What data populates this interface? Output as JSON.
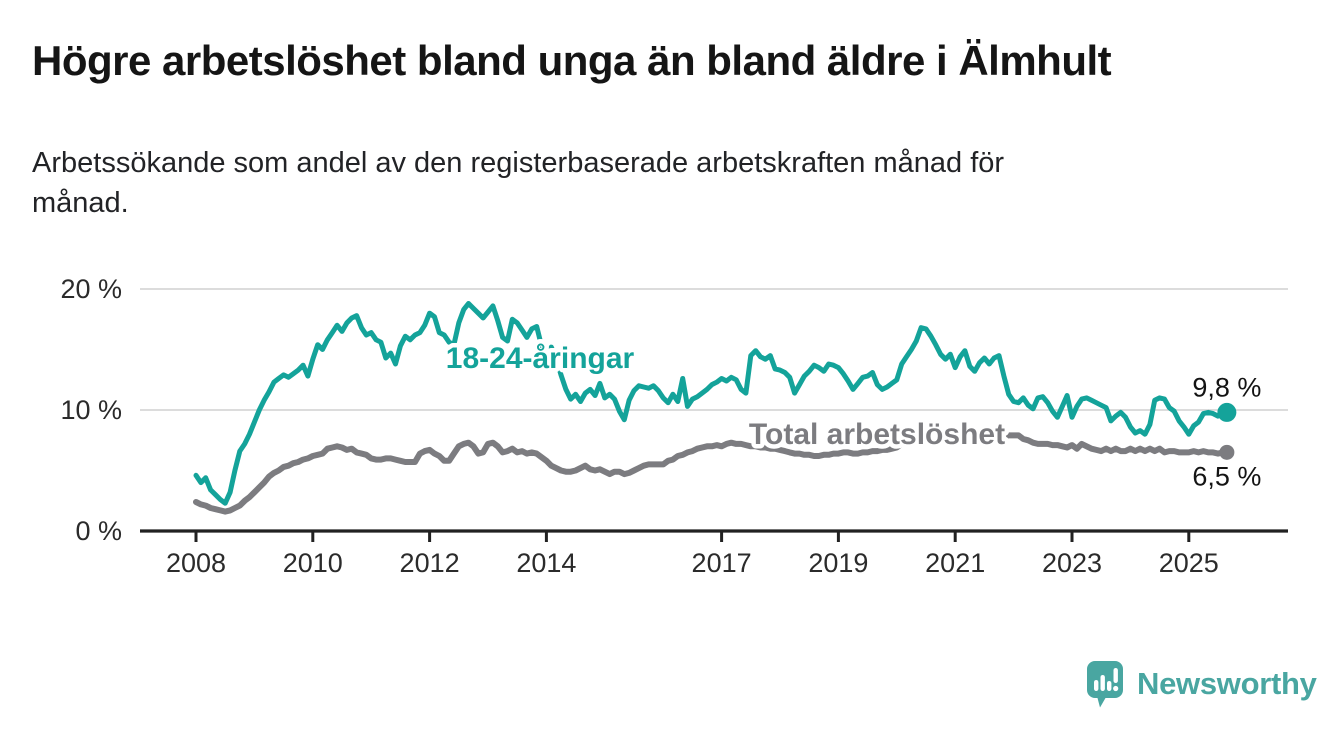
{
  "header": {
    "title": "Högre arbetslöshet bland unga än bland äldre i Älmhult",
    "subtitle": "Arbetssökande som andel av den registerbaserade arbetskraften månad för\nmånad."
  },
  "chart_data": {
    "type": "line",
    "title": "Högre arbetslöshet bland unga än bland äldre i Älmhult",
    "subtitle": "Arbetssökande som andel av den registerbaserade arbetskraften månad för månad.",
    "unit": "%",
    "frequency": "monthly",
    "x_start": "2008-01",
    "x_end": "2025-08",
    "ylim": [
      0,
      20
    ],
    "grid": "horizontal",
    "legend": "inline-labels",
    "y_ticks": [
      {
        "value": 0,
        "label": "0 %"
      },
      {
        "value": 10,
        "label": "10 %"
      },
      {
        "value": 20,
        "label": "20 %"
      }
    ],
    "x_ticks": [
      {
        "year": 2008,
        "label": "2008"
      },
      {
        "year": 2010,
        "label": "2010"
      },
      {
        "year": 2012,
        "label": "2012"
      },
      {
        "year": 2014,
        "label": "2014"
      },
      {
        "year": 2017,
        "label": "2017"
      },
      {
        "year": 2019,
        "label": "2019"
      },
      {
        "year": 2021,
        "label": "2021"
      },
      {
        "year": 2023,
        "label": "2023"
      },
      {
        "year": 2025,
        "label": "2025"
      }
    ],
    "series": [
      {
        "name": "18-24-åringar",
        "color": "#14A39A",
        "end_label": "9,8 %",
        "end_value": 9.8,
        "values": [
          4.6,
          4.0,
          4.4,
          3.4,
          3.0,
          2.6,
          2.3,
          3.2,
          5.0,
          6.6,
          7.2,
          8.0,
          9.0,
          10.0,
          10.8,
          11.5,
          12.3,
          12.6,
          12.9,
          12.7,
          13.0,
          13.3,
          13.7,
          12.8,
          14.2,
          15.4,
          15.0,
          15.8,
          16.4,
          17.0,
          16.5,
          17.2,
          17.6,
          17.8,
          16.8,
          16.2,
          16.4,
          15.8,
          15.6,
          14.3,
          14.7,
          13.8,
          15.3,
          16.1,
          15.8,
          16.2,
          16.4,
          17.0,
          18.0,
          17.7,
          16.4,
          16.2,
          15.6,
          15.4,
          17.2,
          18.3,
          18.8,
          18.4,
          18.0,
          17.6,
          18.1,
          18.6,
          17.4,
          16.0,
          15.7,
          17.5,
          17.2,
          16.6,
          16.0,
          16.7,
          16.9,
          15.3,
          14.5,
          15.2,
          14.3,
          12.9,
          11.7,
          10.9,
          11.3,
          10.7,
          11.4,
          11.7,
          11.2,
          12.2,
          11.0,
          11.3,
          10.9,
          9.9,
          9.2,
          10.8,
          11.6,
          12.0,
          11.9,
          11.8,
          12.0,
          11.6,
          11.0,
          10.6,
          11.3,
          10.7,
          12.6,
          10.3,
          10.9,
          11.1,
          11.4,
          11.7,
          12.1,
          12.3,
          12.6,
          12.4,
          12.7,
          12.5,
          11.7,
          11.4,
          14.5,
          14.9,
          14.4,
          14.2,
          14.5,
          13.4,
          13.3,
          13.1,
          12.7,
          11.4,
          12.1,
          12.8,
          13.2,
          13.7,
          13.5,
          13.2,
          13.8,
          13.7,
          13.5,
          13.0,
          12.4,
          11.7,
          12.2,
          12.7,
          12.8,
          13.1,
          12.1,
          11.7,
          11.9,
          12.2,
          12.5,
          13.8,
          14.4,
          15.0,
          15.7,
          16.8,
          16.7,
          16.1,
          15.4,
          14.6,
          14.2,
          14.6,
          13.5,
          14.4,
          14.9,
          13.6,
          13.2,
          13.9,
          14.3,
          13.8,
          14.3,
          14.5,
          12.8,
          11.3,
          10.7,
          10.6,
          11.0,
          10.4,
          10.1,
          11.0,
          11.1,
          10.6,
          9.9,
          9.4,
          10.3,
          11.2,
          9.4,
          10.3,
          10.9,
          11.0,
          10.8,
          10.6,
          10.4,
          10.2,
          9.1,
          9.5,
          9.8,
          9.4,
          8.6,
          8.1,
          8.3,
          8.0,
          8.8,
          10.8,
          11.0,
          10.9,
          10.2,
          9.9,
          9.1,
          8.6,
          8.0,
          8.7,
          9.0,
          9.7,
          9.8,
          9.7,
          9.5,
          9.8
        ]
      },
      {
        "name": "Total arbetslöshet",
        "color": "#7C7C80",
        "end_label": "6,5 %",
        "end_value": 6.5,
        "values": [
          2.4,
          2.2,
          2.1,
          1.9,
          1.8,
          1.7,
          1.6,
          1.7,
          1.9,
          2.1,
          2.5,
          2.8,
          3.2,
          3.6,
          4.0,
          4.5,
          4.8,
          5.0,
          5.3,
          5.4,
          5.6,
          5.7,
          5.9,
          6.0,
          6.2,
          6.3,
          6.4,
          6.8,
          6.9,
          7.0,
          6.9,
          6.7,
          6.8,
          6.5,
          6.4,
          6.3,
          6.0,
          5.9,
          5.9,
          6.0,
          6.0,
          5.9,
          5.8,
          5.7,
          5.7,
          5.7,
          6.4,
          6.6,
          6.7,
          6.4,
          6.2,
          5.8,
          5.8,
          6.4,
          7.0,
          7.2,
          7.3,
          7.0,
          6.4,
          6.5,
          7.2,
          7.3,
          7.0,
          6.5,
          6.6,
          6.8,
          6.5,
          6.6,
          6.4,
          6.5,
          6.4,
          6.1,
          5.8,
          5.4,
          5.2,
          5.0,
          4.9,
          4.9,
          5.0,
          5.2,
          5.4,
          5.1,
          5.0,
          5.1,
          4.9,
          4.7,
          4.9,
          4.9,
          4.7,
          4.8,
          5.0,
          5.2,
          5.4,
          5.5,
          5.5,
          5.5,
          5.5,
          5.8,
          5.9,
          6.2,
          6.3,
          6.5,
          6.6,
          6.8,
          6.9,
          7.0,
          7.0,
          7.1,
          7.0,
          7.2,
          7.3,
          7.2,
          7.2,
          7.1,
          7.0,
          7.0,
          6.9,
          6.9,
          6.8,
          6.8,
          6.7,
          6.6,
          6.5,
          6.4,
          6.4,
          6.3,
          6.3,
          6.2,
          6.2,
          6.3,
          6.3,
          6.4,
          6.4,
          6.5,
          6.5,
          6.4,
          6.4,
          6.5,
          6.5,
          6.6,
          6.6,
          6.7,
          6.7,
          6.8,
          6.9,
          7.2,
          7.8,
          8.3,
          8.5,
          8.5,
          8.4,
          8.3,
          8.2,
          8.1,
          8.0,
          8.0,
          7.9,
          7.9,
          7.8,
          7.8,
          7.7,
          7.7,
          7.6,
          7.6,
          7.7,
          7.8,
          7.8,
          7.9,
          7.9,
          7.9,
          7.6,
          7.5,
          7.3,
          7.2,
          7.2,
          7.2,
          7.1,
          7.1,
          7.0,
          6.9,
          7.1,
          6.8,
          7.2,
          7.0,
          6.8,
          6.7,
          6.6,
          6.8,
          6.6,
          6.8,
          6.6,
          6.6,
          6.8,
          6.6,
          6.8,
          6.6,
          6.8,
          6.6,
          6.8,
          6.5,
          6.6,
          6.6,
          6.5,
          6.5,
          6.5,
          6.6,
          6.5,
          6.6,
          6.5,
          6.5,
          6.4,
          6.5
        ]
      }
    ]
  },
  "branding": {
    "logo_text": "Newsworthy",
    "logo_icon": "speech-bubble-bar-chart",
    "color": "#49A6A1"
  }
}
